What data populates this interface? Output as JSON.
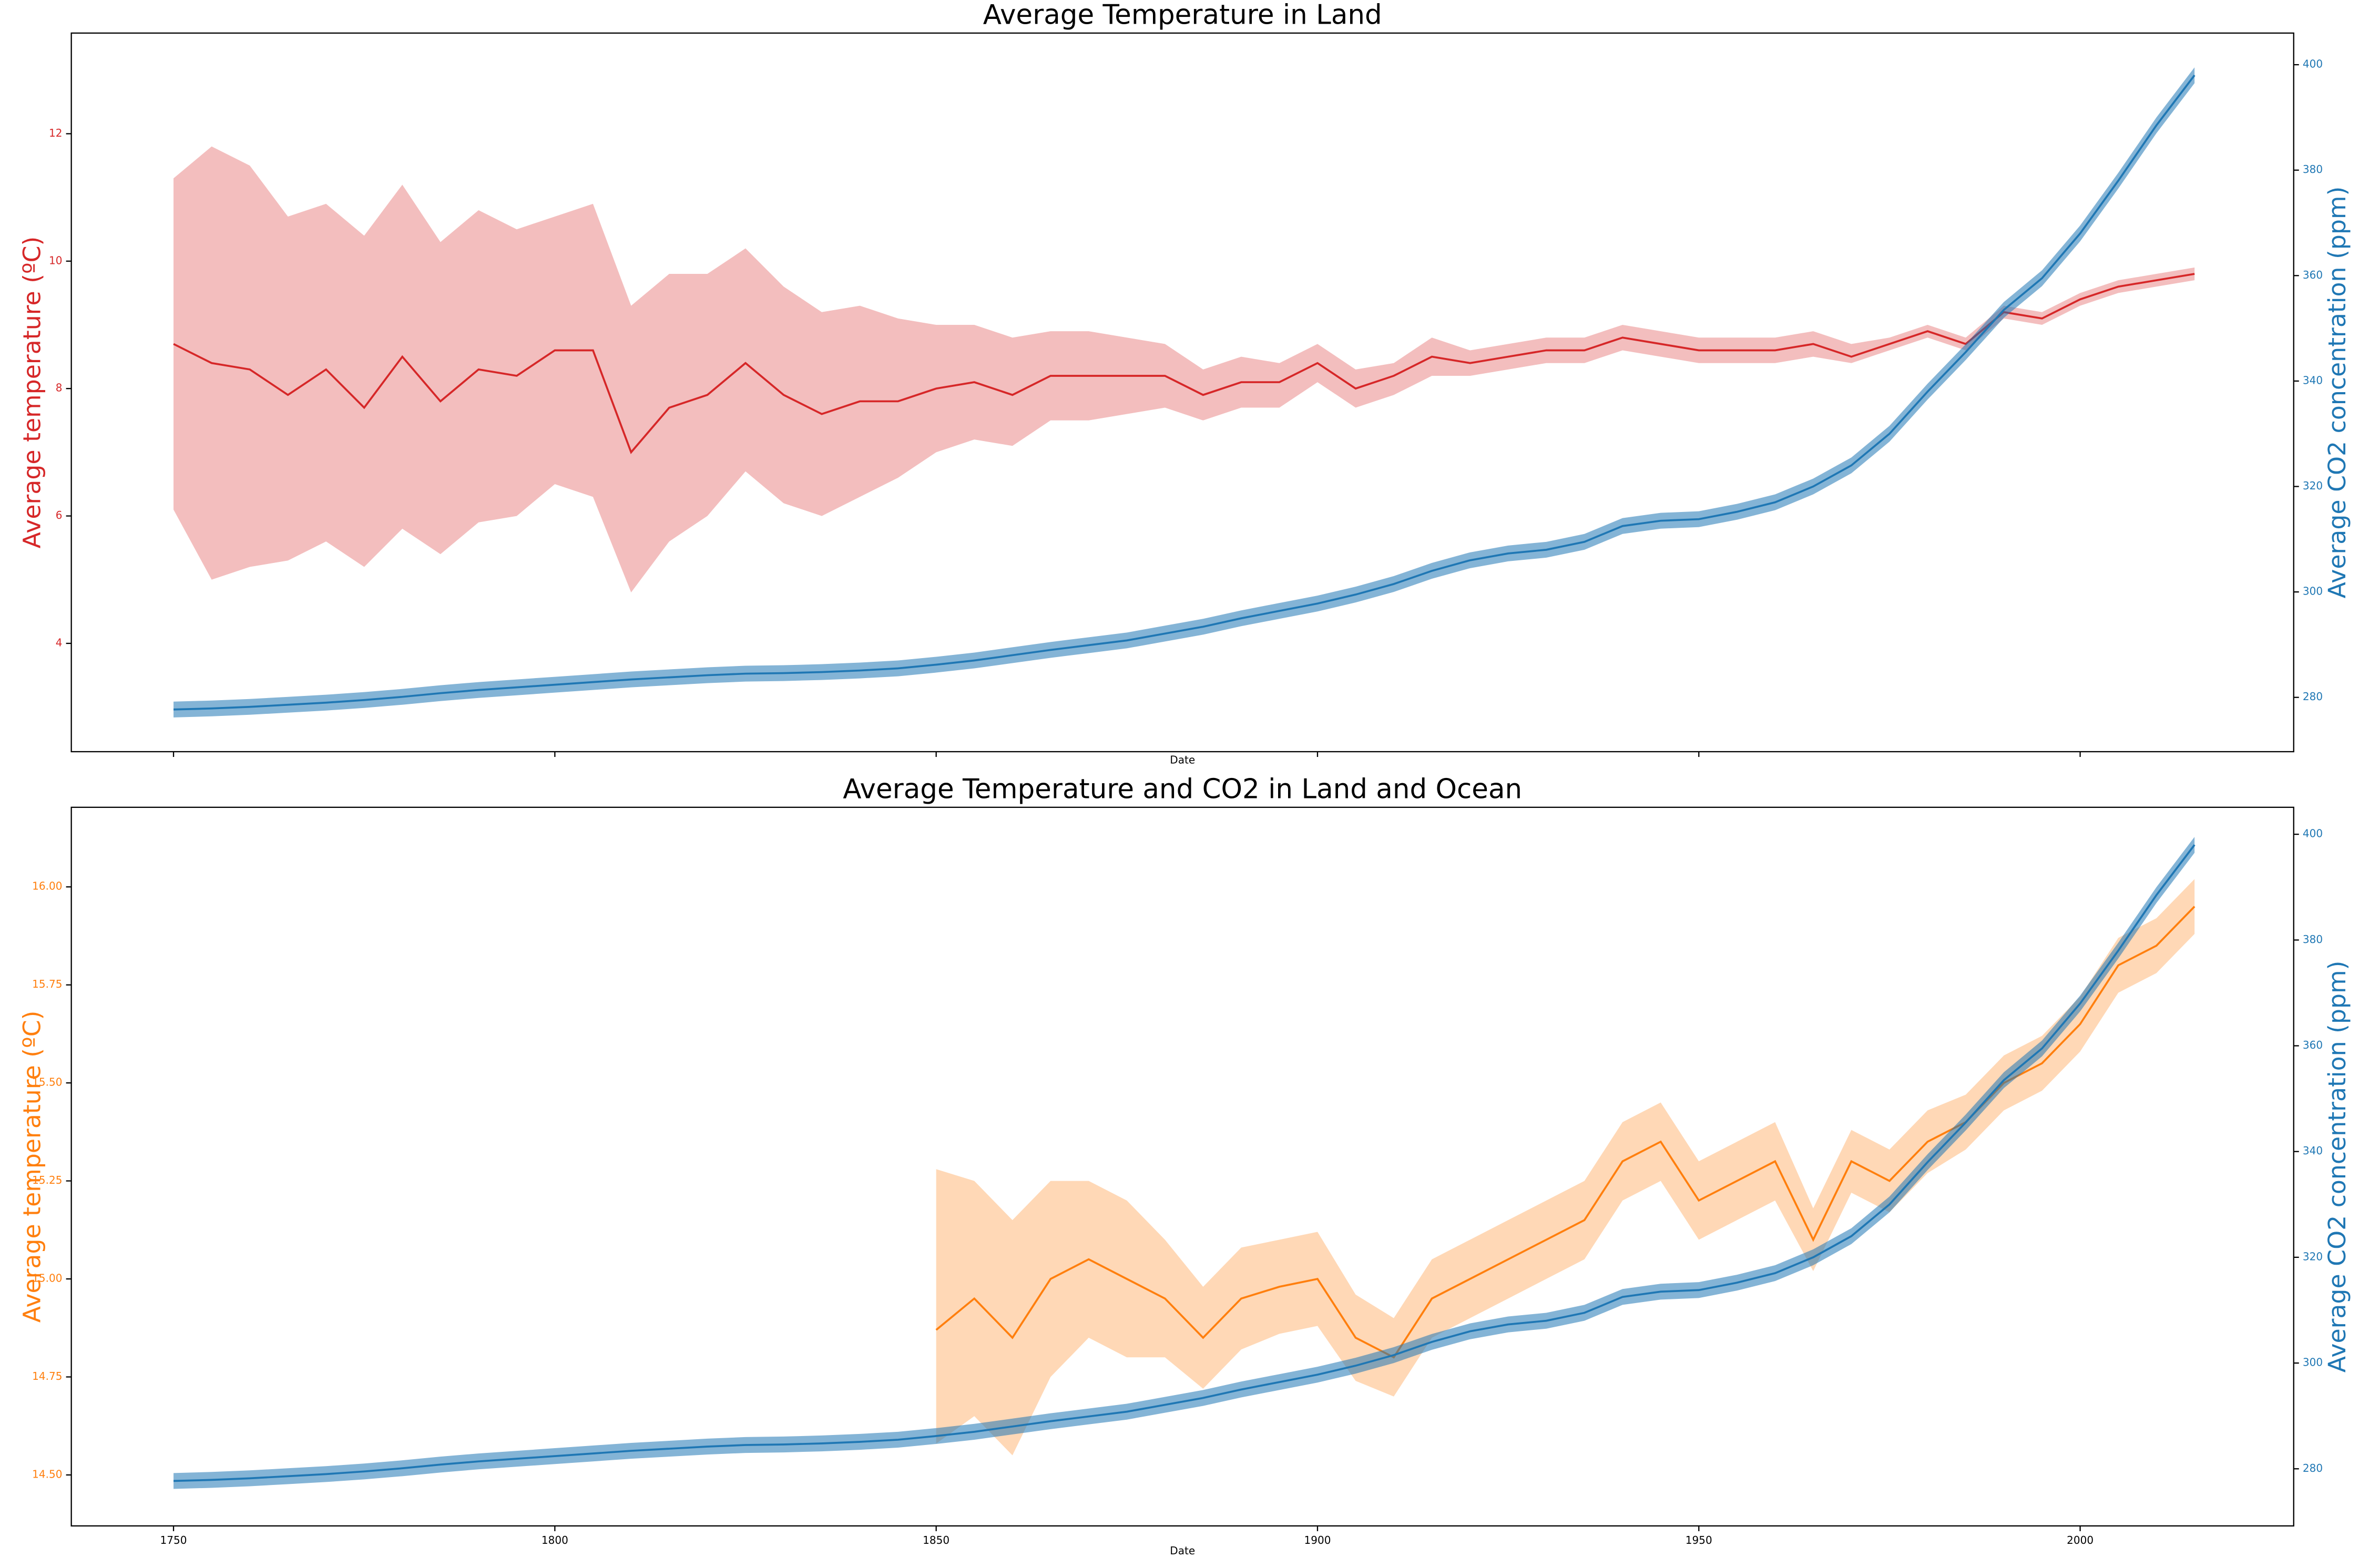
{
  "chart_data": [
    {
      "type": "line",
      "title": "Average Temperature  in Land",
      "xlabel": "Date",
      "ylabel": "Average temperature (ºC)",
      "y2label": "Average CO2 concentration (ppm)",
      "ylabel_color": "#d62728",
      "y2label_color": "#1f77b4",
      "sharex": true,
      "x": [
        1750,
        1755,
        1760,
        1765,
        1770,
        1775,
        1780,
        1785,
        1790,
        1795,
        1800,
        1805,
        1810,
        1815,
        1820,
        1825,
        1830,
        1835,
        1840,
        1845,
        1850,
        1855,
        1860,
        1865,
        1870,
        1875,
        1880,
        1885,
        1890,
        1895,
        1900,
        1905,
        1910,
        1915,
        1920,
        1925,
        1930,
        1935,
        1940,
        1945,
        1950,
        1955,
        1960,
        1965,
        1970,
        1975,
        1980,
        1985,
        1990,
        1995,
        2000,
        2005,
        2010,
        2015
      ],
      "xlim": [
        1736.6,
        2028
      ],
      "xticks": [
        1750,
        1800,
        1850,
        1900,
        1950,
        2000
      ],
      "ylim": [
        2.3,
        13.58
      ],
      "yticks": [
        4,
        6,
        8,
        10,
        12
      ],
      "y2lim": [
        269.7,
        406
      ],
      "y2ticks": [
        280,
        300,
        320,
        340,
        360,
        380,
        400
      ],
      "series": [
        {
          "color": "#d62728",
          "values": [
            8.7,
            8.4,
            8.3,
            7.9,
            8.3,
            7.7,
            8.5,
            7.8,
            8.3,
            8.2,
            8.6,
            8.6,
            7.0,
            7.7,
            7.9,
            8.4,
            7.9,
            7.6,
            7.8,
            7.8,
            8.0,
            8.1,
            7.9,
            8.2,
            8.2,
            8.2,
            8.2,
            7.9,
            8.1,
            8.1,
            8.4,
            8.0,
            8.2,
            8.5,
            8.4,
            8.5,
            8.6,
            8.6,
            8.8,
            8.7,
            8.6,
            8.6,
            8.6,
            8.7,
            8.5,
            8.7,
            8.9,
            8.7,
            9.2,
            9.1,
            9.4,
            9.6,
            9.7,
            9.8
          ],
          "lower": [
            6.1,
            5.0,
            5.2,
            5.3,
            5.6,
            5.2,
            5.8,
            5.4,
            5.9,
            6.0,
            6.5,
            6.3,
            4.8,
            5.6,
            6.0,
            6.7,
            6.2,
            6.0,
            6.3,
            6.6,
            7.0,
            7.2,
            7.1,
            7.5,
            7.5,
            7.6,
            7.7,
            7.5,
            7.7,
            7.7,
            8.1,
            7.7,
            7.9,
            8.2,
            8.2,
            8.3,
            8.4,
            8.4,
            8.6,
            8.5,
            8.4,
            8.4,
            8.4,
            8.5,
            8.4,
            8.6,
            8.8,
            8.6,
            9.1,
            9.0,
            9.3,
            9.5,
            9.6,
            9.7
          ],
          "upper": [
            11.3,
            11.8,
            11.5,
            10.7,
            10.9,
            10.4,
            11.2,
            10.3,
            10.8,
            10.5,
            10.7,
            10.9,
            9.3,
            9.8,
            9.8,
            10.2,
            9.6,
            9.2,
            9.3,
            9.1,
            9.0,
            9.0,
            8.8,
            8.9,
            8.9,
            8.8,
            8.7,
            8.3,
            8.5,
            8.4,
            8.7,
            8.3,
            8.4,
            8.8,
            8.6,
            8.7,
            8.8,
            8.8,
            9.0,
            8.9,
            8.8,
            8.8,
            8.8,
            8.9,
            8.7,
            8.8,
            9.0,
            8.8,
            9.3,
            9.2,
            9.5,
            9.7,
            9.8,
            9.9
          ]
        },
        {
          "color": "#1f77b4",
          "axis": "y2",
          "values": [
            277.7,
            277.9,
            278.2,
            278.6,
            279.0,
            279.5,
            280.1,
            280.8,
            281.4,
            281.9,
            282.4,
            282.9,
            283.4,
            283.8,
            284.2,
            284.5,
            284.6,
            284.8,
            285.1,
            285.5,
            286.2,
            287.0,
            288.0,
            289.0,
            289.9,
            290.8,
            292.1,
            293.4,
            295.0,
            296.4,
            297.8,
            299.5,
            301.5,
            304.0,
            306.0,
            307.3,
            308.0,
            309.5,
            312.5,
            313.5,
            313.8,
            315.2,
            317.0,
            320.0,
            324.0,
            330.0,
            338.0,
            345.5,
            353.5,
            359.5,
            368.0,
            378.0,
            388.5,
            398.0
          ],
          "lower": [
            276.2,
            276.4,
            276.7,
            277.1,
            277.5,
            278.0,
            278.6,
            279.3,
            279.9,
            280.4,
            280.9,
            281.4,
            281.9,
            282.3,
            282.7,
            283.0,
            283.1,
            283.3,
            283.6,
            284.0,
            284.7,
            285.5,
            286.5,
            287.5,
            288.4,
            289.3,
            290.6,
            291.9,
            293.5,
            294.9,
            296.3,
            298.0,
            300.0,
            302.5,
            304.5,
            305.8,
            306.5,
            308.0,
            311.0,
            312.0,
            312.3,
            313.7,
            315.5,
            318.5,
            322.5,
            328.5,
            336.5,
            344.0,
            352.0,
            358.0,
            366.5,
            376.5,
            387.0,
            396.5
          ],
          "upper": [
            279.2,
            279.4,
            279.7,
            280.1,
            280.5,
            281.0,
            281.6,
            282.3,
            282.9,
            283.4,
            283.9,
            284.4,
            284.9,
            285.3,
            285.7,
            286.0,
            286.1,
            286.3,
            286.6,
            287.0,
            287.7,
            288.5,
            289.5,
            290.5,
            291.4,
            292.3,
            293.6,
            294.9,
            296.5,
            297.9,
            299.3,
            301.0,
            303.0,
            305.5,
            307.5,
            308.8,
            309.5,
            311.0,
            314.0,
            315.0,
            315.3,
            316.7,
            318.5,
            321.5,
            325.5,
            331.5,
            339.5,
            347.0,
            355.0,
            361.0,
            369.5,
            379.5,
            390.0,
            399.5
          ]
        }
      ]
    },
    {
      "type": "line",
      "title": "Average Temperature and CO2 in Land and Ocean",
      "xlabel": "Date",
      "ylabel": "Average temperature (ºC)",
      "y2label": "Average CO2 concentration (ppm)",
      "ylabel_color": "#ff7f0e",
      "y2label_color": "#1f77b4",
      "x": [
        1750,
        1755,
        1760,
        1765,
        1770,
        1775,
        1780,
        1785,
        1790,
        1795,
        1800,
        1805,
        1810,
        1815,
        1820,
        1825,
        1830,
        1835,
        1840,
        1845,
        1850,
        1855,
        1860,
        1865,
        1870,
        1875,
        1880,
        1885,
        1890,
        1895,
        1900,
        1905,
        1910,
        1915,
        1920,
        1925,
        1930,
        1935,
        1940,
        1945,
        1950,
        1955,
        1960,
        1965,
        1970,
        1975,
        1980,
        1985,
        1990,
        1995,
        2000,
        2005,
        2010,
        2015
      ],
      "xlim": [
        1736.6,
        2028
      ],
      "xticks": [
        1750,
        1800,
        1850,
        1900,
        1950,
        2000
      ],
      "ylim": [
        14.37,
        16.203
      ],
      "yticks": [
        {
          "value": 14.5,
          "label": "14.50"
        },
        14.75,
        {
          "value": 15,
          "label": "15.00"
        },
        15.25,
        {
          "value": 15.5,
          "label": "15.50"
        },
        15.75,
        {
          "value": 16,
          "label": "16.00"
        }
      ],
      "y2lim": [
        269.2,
        405.1
      ],
      "y2ticks": [
        280,
        300,
        320,
        340,
        360,
        380,
        400
      ],
      "series": [
        {
          "color": "#ff7f0e",
          "values": [
            null,
            null,
            null,
            null,
            null,
            null,
            null,
            null,
            null,
            null,
            null,
            null,
            null,
            null,
            null,
            null,
            null,
            null,
            null,
            null,
            14.87,
            14.95,
            14.85,
            15.0,
            15.05,
            15.0,
            14.95,
            14.85,
            14.95,
            14.98,
            15.0,
            14.85,
            14.8,
            14.95,
            15.0,
            15.05,
            15.1,
            15.15,
            15.3,
            15.35,
            15.2,
            15.25,
            15.3,
            15.1,
            15.3,
            15.25,
            15.35,
            15.4,
            15.5,
            15.55,
            15.65,
            15.8,
            15.85,
            15.95
          ],
          "lower": [
            null,
            null,
            null,
            null,
            null,
            null,
            null,
            null,
            null,
            null,
            null,
            null,
            null,
            null,
            null,
            null,
            null,
            null,
            null,
            null,
            14.58,
            14.65,
            14.55,
            14.75,
            14.85,
            14.8,
            14.8,
            14.72,
            14.82,
            14.86,
            14.88,
            14.74,
            14.7,
            14.85,
            14.9,
            14.95,
            15.0,
            15.05,
            15.2,
            15.25,
            15.1,
            15.15,
            15.2,
            15.02,
            15.22,
            15.17,
            15.27,
            15.33,
            15.43,
            15.48,
            15.58,
            15.73,
            15.78,
            15.88
          ],
          "upper": [
            null,
            null,
            null,
            null,
            null,
            null,
            null,
            null,
            null,
            null,
            null,
            null,
            null,
            null,
            null,
            null,
            null,
            null,
            null,
            null,
            15.28,
            15.25,
            15.15,
            15.25,
            15.25,
            15.2,
            15.1,
            14.98,
            15.08,
            15.1,
            15.12,
            14.96,
            14.9,
            15.05,
            15.1,
            15.15,
            15.2,
            15.25,
            15.4,
            15.45,
            15.3,
            15.35,
            15.4,
            15.18,
            15.38,
            15.33,
            15.43,
            15.47,
            15.57,
            15.62,
            15.72,
            15.87,
            15.92,
            16.02
          ]
        },
        {
          "color": "#1f77b4",
          "axis": "y2",
          "values": [
            277.7,
            277.9,
            278.2,
            278.6,
            279.0,
            279.5,
            280.1,
            280.8,
            281.4,
            281.9,
            282.4,
            282.9,
            283.4,
            283.8,
            284.2,
            284.5,
            284.6,
            284.8,
            285.1,
            285.5,
            286.2,
            287.0,
            288.0,
            289.0,
            289.9,
            290.8,
            292.1,
            293.4,
            295.0,
            296.4,
            297.8,
            299.5,
            301.5,
            304.0,
            306.0,
            307.3,
            308.0,
            309.5,
            312.5,
            313.5,
            313.8,
            315.2,
            317.0,
            320.0,
            324.0,
            330.0,
            338.0,
            345.5,
            353.5,
            359.5,
            368.0,
            378.0,
            388.5,
            398.0
          ],
          "lower": [
            276.2,
            276.4,
            276.7,
            277.1,
            277.5,
            278.0,
            278.6,
            279.3,
            279.9,
            280.4,
            280.9,
            281.4,
            281.9,
            282.3,
            282.7,
            283.0,
            283.1,
            283.3,
            283.6,
            284.0,
            284.7,
            285.5,
            286.5,
            287.5,
            288.4,
            289.3,
            290.6,
            291.9,
            293.5,
            294.9,
            296.3,
            298.0,
            300.0,
            302.5,
            304.5,
            305.8,
            306.5,
            308.0,
            311.0,
            312.0,
            312.3,
            313.7,
            315.5,
            318.5,
            322.5,
            328.5,
            336.5,
            344.0,
            352.0,
            358.0,
            366.5,
            376.5,
            387.0,
            396.5
          ],
          "upper": [
            279.2,
            279.4,
            279.7,
            280.1,
            280.5,
            281.0,
            281.6,
            282.3,
            282.9,
            283.4,
            283.9,
            284.4,
            284.9,
            285.3,
            285.7,
            286.0,
            286.1,
            286.3,
            286.6,
            287.0,
            287.7,
            288.5,
            289.5,
            290.5,
            291.4,
            292.3,
            293.6,
            294.9,
            296.5,
            297.9,
            299.3,
            301.0,
            303.0,
            305.5,
            307.5,
            308.8,
            309.5,
            311.0,
            314.0,
            315.0,
            315.3,
            316.7,
            318.5,
            321.5,
            325.5,
            331.5,
            339.5,
            347.0,
            355.0,
            361.0,
            369.5,
            379.5,
            390.0,
            399.5
          ]
        }
      ]
    }
  ]
}
